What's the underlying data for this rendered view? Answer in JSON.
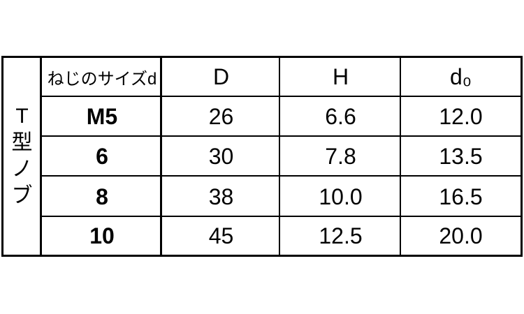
{
  "side_label": [
    "T",
    "型",
    "ノ",
    "ブ"
  ],
  "headers": [
    "ねじのサイズd",
    "D",
    "H",
    "d₀"
  ],
  "rows": [
    [
      "M5",
      "26",
      "6.6",
      "12.0"
    ],
    [
      "6",
      "30",
      "7.8",
      "13.5"
    ],
    [
      "8",
      "38",
      "10.0",
      "16.5"
    ],
    [
      "10",
      "45",
      "12.5",
      "20.0"
    ]
  ]
}
